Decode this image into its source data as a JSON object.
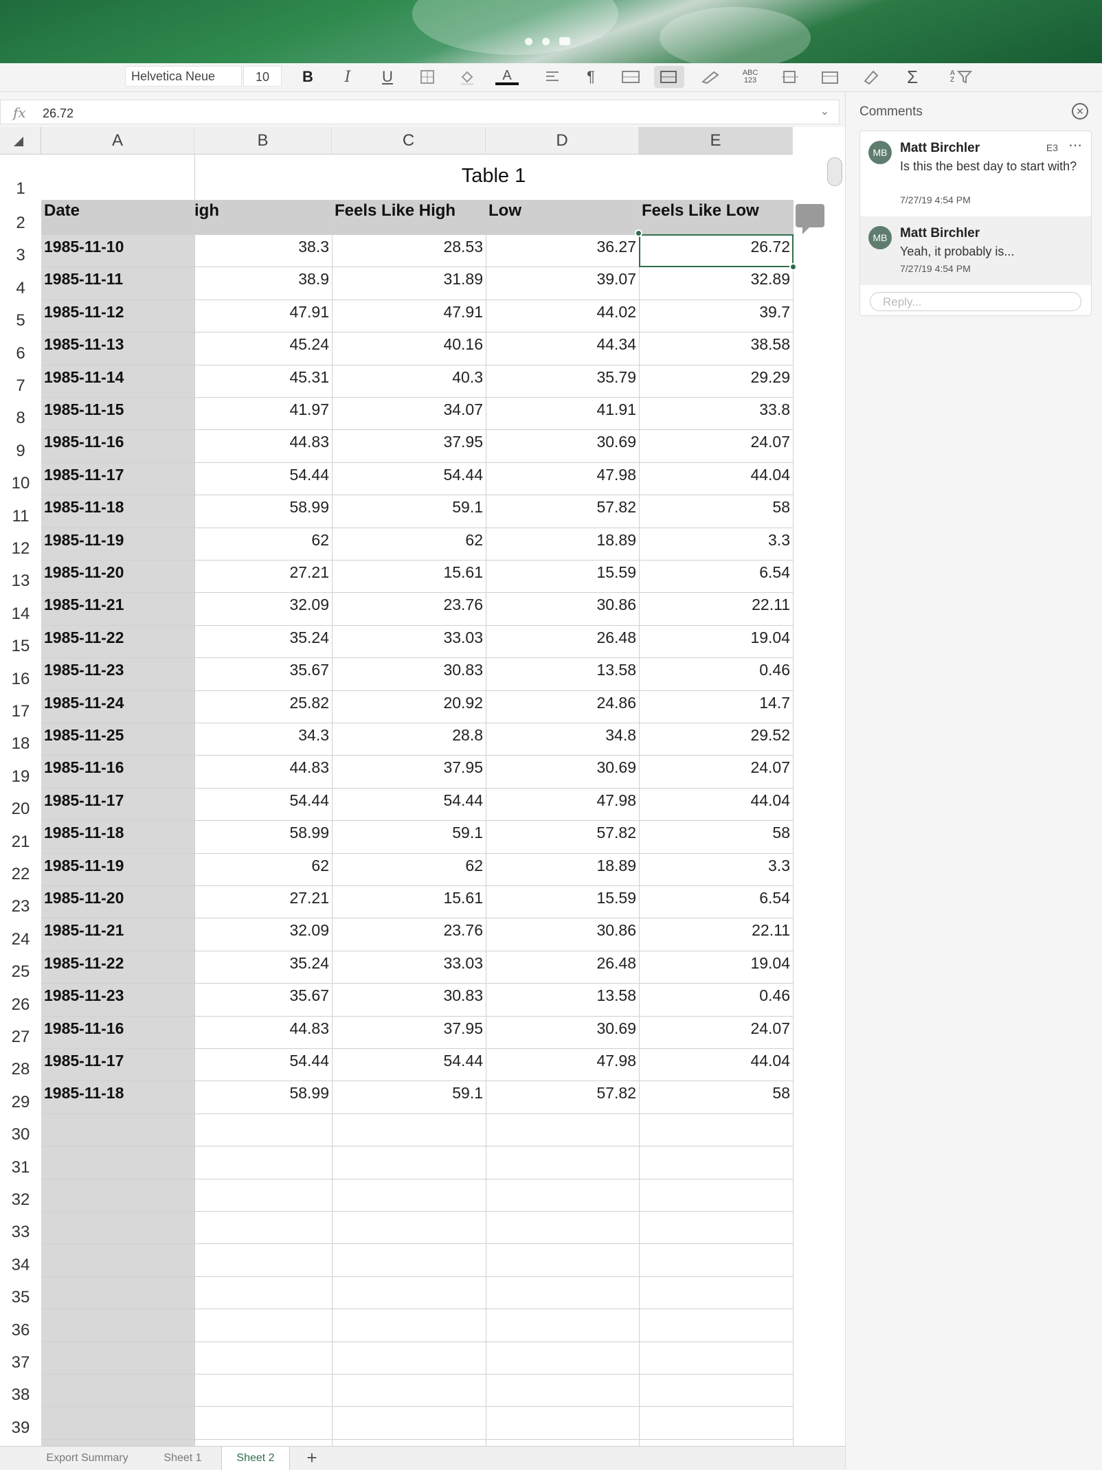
{
  "toolbar": {
    "font_name": "Helvetica Neue",
    "font_size": "10",
    "bold": "B",
    "italic": "I",
    "underline": "U",
    "text_color": "A",
    "paragraph": "¶",
    "spell": "ABC 123",
    "sum": "Σ",
    "sort": "A Z"
  },
  "formula_bar": {
    "fx": "fx",
    "value": "26.72"
  },
  "columns": [
    "A",
    "B",
    "C",
    "D",
    "E"
  ],
  "table_title": "Table 1",
  "headers": [
    "Date",
    "igh",
    "Feels Like High",
    "Low",
    "Feels Like Low"
  ],
  "rows": [
    [
      "1985-11-10",
      "38.3",
      "28.53",
      "36.27",
      "26.72"
    ],
    [
      "1985-11-11",
      "38.9",
      "31.89",
      "39.07",
      "32.89"
    ],
    [
      "1985-11-12",
      "47.91",
      "47.91",
      "44.02",
      "39.7"
    ],
    [
      "1985-11-13",
      "45.24",
      "40.16",
      "44.34",
      "38.58"
    ],
    [
      "1985-11-14",
      "45.31",
      "40.3",
      "35.79",
      "29.29"
    ],
    [
      "1985-11-15",
      "41.97",
      "34.07",
      "41.91",
      "33.8"
    ],
    [
      "1985-11-16",
      "44.83",
      "37.95",
      "30.69",
      "24.07"
    ],
    [
      "1985-11-17",
      "54.44",
      "54.44",
      "47.98",
      "44.04"
    ],
    [
      "1985-11-18",
      "58.99",
      "59.1",
      "57.82",
      "58"
    ],
    [
      "1985-11-19",
      "62",
      "62",
      "18.89",
      "3.3"
    ],
    [
      "1985-11-20",
      "27.21",
      "15.61",
      "15.59",
      "6.54"
    ],
    [
      "1985-11-21",
      "32.09",
      "23.76",
      "30.86",
      "22.11"
    ],
    [
      "1985-11-22",
      "35.24",
      "33.03",
      "26.48",
      "19.04"
    ],
    [
      "1985-11-23",
      "35.67",
      "30.83",
      "13.58",
      "0.46"
    ],
    [
      "1985-11-24",
      "25.82",
      "20.92",
      "24.86",
      "14.7"
    ],
    [
      "1985-11-25",
      "34.3",
      "28.8",
      "34.8",
      "29.52"
    ],
    [
      "1985-11-16",
      "44.83",
      "37.95",
      "30.69",
      "24.07"
    ],
    [
      "1985-11-17",
      "54.44",
      "54.44",
      "47.98",
      "44.04"
    ],
    [
      "1985-11-18",
      "58.99",
      "59.1",
      "57.82",
      "58"
    ],
    [
      "1985-11-19",
      "62",
      "62",
      "18.89",
      "3.3"
    ],
    [
      "1985-11-20",
      "27.21",
      "15.61",
      "15.59",
      "6.54"
    ],
    [
      "1985-11-21",
      "32.09",
      "23.76",
      "30.86",
      "22.11"
    ],
    [
      "1985-11-22",
      "35.24",
      "33.03",
      "26.48",
      "19.04"
    ],
    [
      "1985-11-23",
      "35.67",
      "30.83",
      "13.58",
      "0.46"
    ],
    [
      "1985-11-16",
      "44.83",
      "37.95",
      "30.69",
      "24.07"
    ],
    [
      "1985-11-17",
      "54.44",
      "54.44",
      "47.98",
      "44.04"
    ],
    [
      "1985-11-18",
      "58.99",
      "59.1",
      "57.82",
      "58"
    ]
  ],
  "comments": {
    "title": "Comments",
    "items": [
      {
        "initials": "MB",
        "author": "Matt Birchler",
        "cell_ref": "E3",
        "text": "Is this the best day to start with?",
        "time": "7/27/19 4:54 PM"
      },
      {
        "initials": "MB",
        "author": "Matt Birchler",
        "cell_ref": "",
        "text": "Yeah, it probably is...",
        "time": "7/27/19 4:54 PM"
      }
    ],
    "reply_placeholder": "Reply..."
  },
  "tabs": [
    "Export Summary",
    "Sheet 1",
    "Sheet 2"
  ],
  "active_tab": "Sheet 2",
  "colors": {
    "accent": "#2d6e4a",
    "header_fill": "#cfcfcf"
  }
}
